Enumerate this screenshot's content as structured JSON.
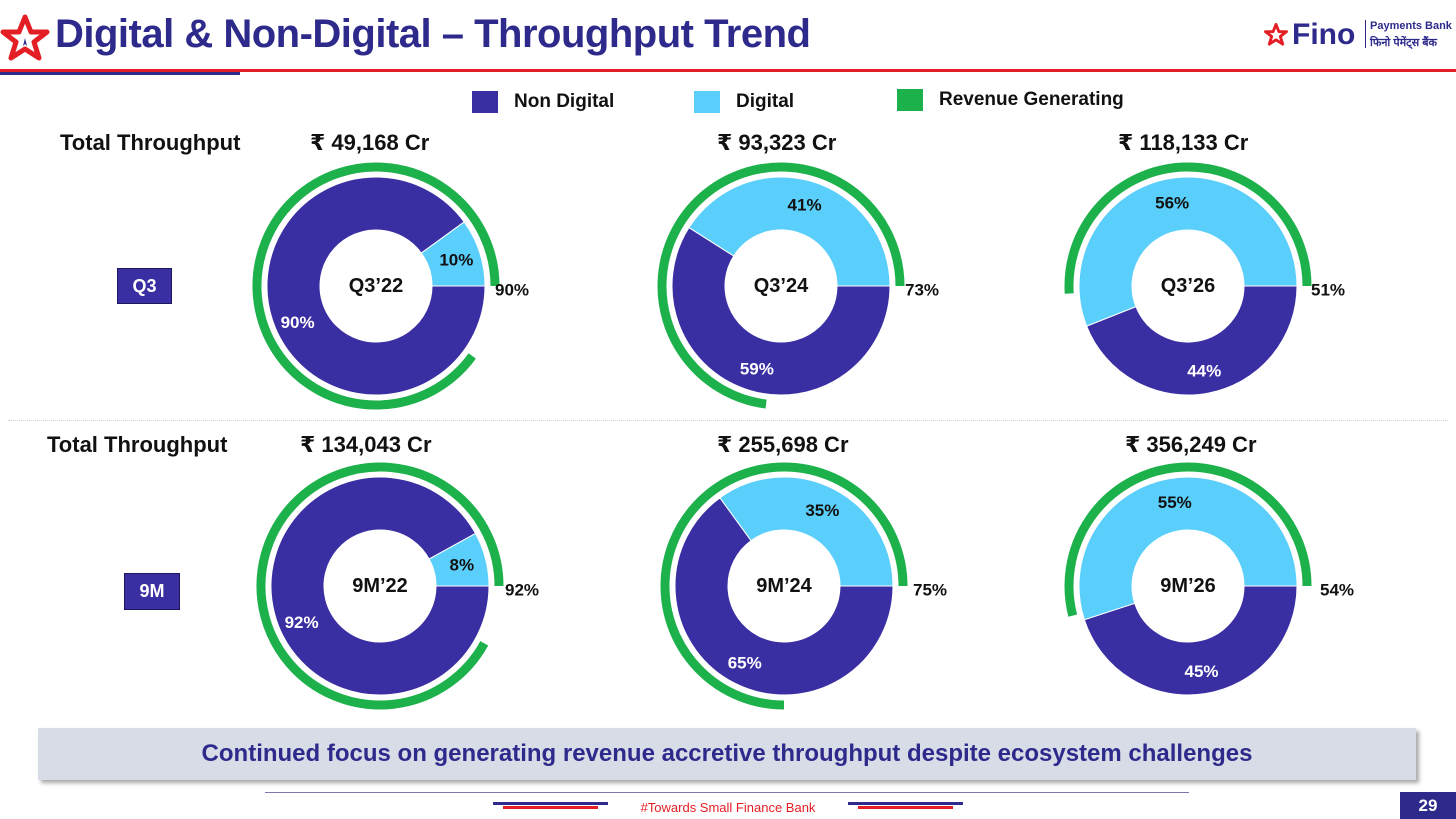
{
  "title": "Digital & Non-Digital – Throughput Trend",
  "logo": {
    "name": "Fino",
    "line1": "Payments Bank",
    "line2": "फिनो पेमेंट्स बैंक"
  },
  "legend": [
    {
      "label": "Non Digital",
      "color": "#3A2EA3"
    },
    {
      "label": "Digital",
      "color": "#5BCFFB"
    },
    {
      "label": "Revenue Generating",
      "color": "#1DB14B"
    }
  ],
  "rows": {
    "q3": {
      "label": "Total Throughput",
      "period": "Q3"
    },
    "nine_m": {
      "label": "Total Throughput",
      "period": "9M"
    }
  },
  "colors": {
    "non_digital": "#3A2EA3",
    "digital": "#5BCFFB",
    "revenue": "#1DB14B",
    "brand": "#2E2A8C",
    "accent": "#E31E24"
  },
  "chart_data": [
    {
      "type": "donut",
      "center_label": "Q3’22",
      "total": "₹ 49,168 Cr",
      "non_digital": 90,
      "digital": 10,
      "non_digital_label": "90%",
      "digital_label": "10%",
      "revenue_generating": 90,
      "revenue_label": "90%"
    },
    {
      "type": "donut",
      "center_label": "Q3’24",
      "total": "₹ 93,323 Cr",
      "non_digital": 59,
      "digital": 41,
      "non_digital_label": "59%",
      "digital_label": "41%",
      "revenue_generating": 73,
      "revenue_label": "73%"
    },
    {
      "type": "donut",
      "center_label": "Q3’26",
      "total": "₹ 118,133 Cr",
      "non_digital": 44,
      "digital": 56,
      "non_digital_label": "44%",
      "digital_label": "56%",
      "revenue_generating": 51,
      "revenue_label": "51%"
    },
    {
      "type": "donut",
      "center_label": "9M’22",
      "total": "₹ 134,043 Cr",
      "non_digital": 92,
      "digital": 8,
      "non_digital_label": "92%",
      "digital_label": "8%",
      "revenue_generating": 92,
      "revenue_label": "92%"
    },
    {
      "type": "donut",
      "center_label": "9M’24",
      "total": "₹ 255,698 Cr",
      "non_digital": 65,
      "digital": 35,
      "non_digital_label": "65%",
      "digital_label": "35%",
      "revenue_generating": 75,
      "revenue_label": "75%"
    },
    {
      "type": "donut",
      "center_label": "9M’26",
      "total": "₹ 356,249 Cr",
      "non_digital": 45,
      "digital": 55,
      "non_digital_label": "45%",
      "digital_label": "55%",
      "revenue_generating": 54,
      "revenue_label": "54%"
    }
  ],
  "banner": "Continued focus on generating revenue accretive throughput despite ecosystem challenges",
  "footer": "#Towards Small Finance Bank",
  "page_number": "29"
}
